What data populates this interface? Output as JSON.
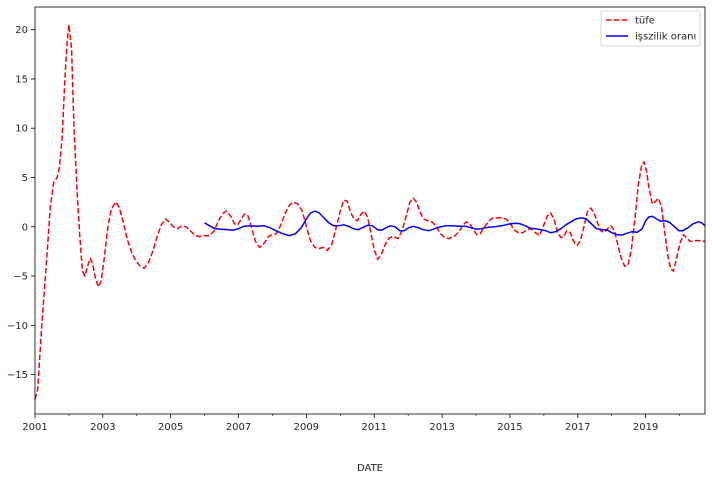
{
  "chart_data": {
    "type": "line",
    "title": "",
    "xlabel": "DATE",
    "ylabel": "",
    "xlim": [
      2001.0,
      2020.75
    ],
    "ylim": [
      -19.0,
      22.3
    ],
    "grid": false,
    "legend_position": "top-right",
    "x_tick_labels": [
      "2001",
      "2003",
      "2005",
      "2007",
      "2009",
      "2011",
      "2013",
      "2015",
      "2017",
      "2019"
    ],
    "x_major_ticks": [
      2001,
      2003,
      2005,
      2007,
      2009,
      2011,
      2013,
      2015,
      2017,
      2019
    ],
    "x_minor_ticks": [
      2002,
      2004,
      2006,
      2008,
      2010,
      2012,
      2014,
      2016,
      2018,
      2020
    ],
    "y_ticks": [
      -15,
      -10,
      -5,
      0,
      5,
      10,
      15,
      20
    ],
    "y_tick_labels": [
      "−15",
      "−10",
      "−5",
      "0",
      "5",
      "10",
      "15",
      "20"
    ],
    "series": [
      {
        "name": "tüfe",
        "color": "#ff0000",
        "style": "dashed",
        "points": [
          [
            2001.0,
            -17.5
          ],
          [
            2001.08,
            -16.5
          ],
          [
            2001.2,
            -10.0
          ],
          [
            2001.35,
            -3.0
          ],
          [
            2001.45,
            2.0
          ],
          [
            2001.55,
            4.5
          ],
          [
            2001.65,
            5.0
          ],
          [
            2001.72,
            6.0
          ],
          [
            2001.8,
            9.0
          ],
          [
            2001.88,
            15.0
          ],
          [
            2001.95,
            18.8
          ],
          [
            2002.0,
            20.5
          ],
          [
            2002.08,
            18.0
          ],
          [
            2002.15,
            10.0
          ],
          [
            2002.25,
            3.0
          ],
          [
            2002.32,
            -1.0
          ],
          [
            2002.4,
            -4.5
          ],
          [
            2002.47,
            -5.0
          ],
          [
            2002.55,
            -4.0
          ],
          [
            2002.63,
            -3.2
          ],
          [
            2002.7,
            -3.8
          ],
          [
            2002.78,
            -5.2
          ],
          [
            2002.87,
            -6.1
          ],
          [
            2002.95,
            -5.5
          ],
          [
            2003.05,
            -3.0
          ],
          [
            2003.15,
            0.0
          ],
          [
            2003.25,
            1.8
          ],
          [
            2003.38,
            2.5
          ],
          [
            2003.48,
            2.0
          ],
          [
            2003.6,
            0.5
          ],
          [
            2003.72,
            -1.3
          ],
          [
            2003.85,
            -2.6
          ],
          [
            2003.98,
            -3.5
          ],
          [
            2004.1,
            -4.0
          ],
          [
            2004.22,
            -4.2
          ],
          [
            2004.35,
            -3.6
          ],
          [
            2004.48,
            -2.4
          ],
          [
            2004.6,
            -1.0
          ],
          [
            2004.72,
            0.2
          ],
          [
            2004.85,
            0.8
          ],
          [
            2004.95,
            0.5
          ],
          [
            2005.08,
            0.0
          ],
          [
            2005.2,
            -0.2
          ],
          [
            2005.32,
            0.1
          ],
          [
            2005.45,
            0.0
          ],
          [
            2005.58,
            -0.4
          ],
          [
            2005.72,
            -0.9
          ],
          [
            2005.85,
            -1.0
          ],
          [
            2006.0,
            -0.9
          ],
          [
            2006.15,
            -0.9
          ],
          [
            2006.28,
            -0.4
          ],
          [
            2006.42,
            0.7
          ],
          [
            2006.55,
            1.4
          ],
          [
            2006.65,
            1.6
          ],
          [
            2006.78,
            1.0
          ],
          [
            2006.88,
            0.3
          ],
          [
            2006.98,
            0.2
          ],
          [
            2007.08,
            0.8
          ],
          [
            2007.18,
            1.3
          ],
          [
            2007.28,
            1.1
          ],
          [
            2007.38,
            0.0
          ],
          [
            2007.5,
            -1.5
          ],
          [
            2007.62,
            -2.1
          ],
          [
            2007.75,
            -1.7
          ],
          [
            2007.88,
            -1.0
          ],
          [
            2008.0,
            -0.8
          ],
          [
            2008.12,
            -0.7
          ],
          [
            2008.25,
            0.2
          ],
          [
            2008.38,
            1.4
          ],
          [
            2008.5,
            2.2
          ],
          [
            2008.62,
            2.5
          ],
          [
            2008.75,
            2.3
          ],
          [
            2008.88,
            1.6
          ],
          [
            2009.0,
            0.0
          ],
          [
            2009.12,
            -1.4
          ],
          [
            2009.25,
            -2.1
          ],
          [
            2009.38,
            -2.2
          ],
          [
            2009.5,
            -2.1
          ],
          [
            2009.62,
            -2.4
          ],
          [
            2009.75,
            -1.8
          ],
          [
            2009.87,
            -0.2
          ],
          [
            2010.0,
            1.6
          ],
          [
            2010.1,
            2.7
          ],
          [
            2010.2,
            2.6
          ],
          [
            2010.3,
            1.5
          ],
          [
            2010.4,
            0.8
          ],
          [
            2010.5,
            0.6
          ],
          [
            2010.6,
            1.2
          ],
          [
            2010.7,
            1.6
          ],
          [
            2010.8,
            1.0
          ],
          [
            2010.9,
            -0.6
          ],
          [
            2011.0,
            -2.3
          ],
          [
            2011.1,
            -3.3
          ],
          [
            2011.2,
            -2.9
          ],
          [
            2011.32,
            -1.8
          ],
          [
            2011.45,
            -1.1
          ],
          [
            2011.58,
            -1.0
          ],
          [
            2011.7,
            -1.2
          ],
          [
            2011.82,
            -0.4
          ],
          [
            2011.95,
            1.2
          ],
          [
            2012.05,
            2.5
          ],
          [
            2012.15,
            2.9
          ],
          [
            2012.25,
            2.5
          ],
          [
            2012.35,
            1.5
          ],
          [
            2012.45,
            0.8
          ],
          [
            2012.58,
            0.6
          ],
          [
            2012.7,
            0.5
          ],
          [
            2012.82,
            0.1
          ],
          [
            2012.95,
            -0.7
          ],
          [
            2013.08,
            -1.1
          ],
          [
            2013.2,
            -1.2
          ],
          [
            2013.35,
            -1.0
          ],
          [
            2013.5,
            -0.5
          ],
          [
            2013.62,
            0.2
          ],
          [
            2013.72,
            0.5
          ],
          [
            2013.82,
            0.3
          ],
          [
            2013.92,
            -0.3
          ],
          [
            2014.02,
            -0.8
          ],
          [
            2014.12,
            -0.7
          ],
          [
            2014.25,
            0.0
          ],
          [
            2014.38,
            0.6
          ],
          [
            2014.5,
            0.9
          ],
          [
            2014.62,
            0.9
          ],
          [
            2014.75,
            0.9
          ],
          [
            2014.88,
            0.8
          ],
          [
            2015.0,
            0.4
          ],
          [
            2015.12,
            -0.3
          ],
          [
            2015.25,
            -0.6
          ],
          [
            2015.38,
            -0.6
          ],
          [
            2015.5,
            -0.3
          ],
          [
            2015.62,
            -0.2
          ],
          [
            2015.75,
            -0.6
          ],
          [
            2015.88,
            -0.9
          ],
          [
            2016.0,
            0.2
          ],
          [
            2016.1,
            1.1
          ],
          [
            2016.2,
            1.4
          ],
          [
            2016.3,
            0.8
          ],
          [
            2016.4,
            -0.5
          ],
          [
            2016.5,
            -1.1
          ],
          [
            2016.58,
            -1.0
          ],
          [
            2016.68,
            -0.4
          ],
          [
            2016.78,
            -0.6
          ],
          [
            2016.88,
            -1.5
          ],
          [
            2016.98,
            -1.9
          ],
          [
            2017.08,
            -1.4
          ],
          [
            2017.18,
            0.0
          ],
          [
            2017.28,
            1.5
          ],
          [
            2017.38,
            1.9
          ],
          [
            2017.48,
            1.4
          ],
          [
            2017.58,
            0.4
          ],
          [
            2017.68,
            -0.4
          ],
          [
            2017.78,
            -0.6
          ],
          [
            2017.88,
            -0.2
          ],
          [
            2017.98,
            0.1
          ],
          [
            2018.08,
            -0.4
          ],
          [
            2018.18,
            -1.8
          ],
          [
            2018.28,
            -3.2
          ],
          [
            2018.38,
            -4.0
          ],
          [
            2018.48,
            -3.9
          ],
          [
            2018.58,
            -2.3
          ],
          [
            2018.68,
            0.7
          ],
          [
            2018.78,
            4.2
          ],
          [
            2018.88,
            6.2
          ],
          [
            2018.95,
            6.6
          ],
          [
            2019.02,
            5.8
          ],
          [
            2019.1,
            3.9
          ],
          [
            2019.2,
            2.3
          ],
          [
            2019.3,
            2.6
          ],
          [
            2019.38,
            2.9
          ],
          [
            2019.47,
            2.0
          ],
          [
            2019.56,
            -0.5
          ],
          [
            2019.66,
            -3.0
          ],
          [
            2019.74,
            -4.3
          ],
          [
            2019.82,
            -4.5
          ],
          [
            2019.92,
            -3.1
          ],
          [
            2020.02,
            -1.6
          ],
          [
            2020.12,
            -0.8
          ],
          [
            2020.22,
            -1.2
          ],
          [
            2020.32,
            -1.5
          ],
          [
            2020.45,
            -1.4
          ],
          [
            2020.58,
            -1.4
          ],
          [
            2020.75,
            -1.5
          ]
        ]
      },
      {
        "name": "işszilik oranı",
        "color": "#0000ff",
        "style": "solid",
        "points": [
          [
            2006.0,
            0.4
          ],
          [
            2006.15,
            0.1
          ],
          [
            2006.3,
            -0.2
          ],
          [
            2006.5,
            -0.25
          ],
          [
            2006.7,
            -0.3
          ],
          [
            2006.85,
            -0.35
          ],
          [
            2007.0,
            -0.2
          ],
          [
            2007.15,
            0.05
          ],
          [
            2007.35,
            0.1
          ],
          [
            2007.55,
            0.05
          ],
          [
            2007.75,
            0.1
          ],
          [
            2007.92,
            -0.1
          ],
          [
            2008.1,
            -0.4
          ],
          [
            2008.3,
            -0.7
          ],
          [
            2008.5,
            -0.9
          ],
          [
            2008.68,
            -0.7
          ],
          [
            2008.85,
            -0.1
          ],
          [
            2009.0,
            0.8
          ],
          [
            2009.12,
            1.4
          ],
          [
            2009.25,
            1.6
          ],
          [
            2009.38,
            1.4
          ],
          [
            2009.52,
            0.9
          ],
          [
            2009.66,
            0.4
          ],
          [
            2009.8,
            0.1
          ],
          [
            2009.95,
            0.1
          ],
          [
            2010.1,
            0.2
          ],
          [
            2010.25,
            0.05
          ],
          [
            2010.38,
            -0.2
          ],
          [
            2010.52,
            -0.3
          ],
          [
            2010.65,
            -0.1
          ],
          [
            2010.8,
            0.15
          ],
          [
            2010.95,
            0.1
          ],
          [
            2011.1,
            -0.3
          ],
          [
            2011.22,
            -0.35
          ],
          [
            2011.35,
            -0.1
          ],
          [
            2011.48,
            0.1
          ],
          [
            2011.62,
            0.0
          ],
          [
            2011.75,
            -0.4
          ],
          [
            2011.88,
            -0.4
          ],
          [
            2012.02,
            -0.1
          ],
          [
            2012.15,
            0.05
          ],
          [
            2012.3,
            -0.1
          ],
          [
            2012.45,
            -0.3
          ],
          [
            2012.6,
            -0.4
          ],
          [
            2012.75,
            -0.25
          ],
          [
            2012.9,
            -0.05
          ],
          [
            2013.1,
            0.1
          ],
          [
            2013.3,
            0.1
          ],
          [
            2013.5,
            0.05
          ],
          [
            2013.7,
            0.05
          ],
          [
            2013.85,
            -0.1
          ],
          [
            2014.0,
            -0.25
          ],
          [
            2014.15,
            -0.2
          ],
          [
            2014.35,
            -0.05
          ],
          [
            2014.55,
            0.0
          ],
          [
            2014.75,
            0.1
          ],
          [
            2014.95,
            0.25
          ],
          [
            2015.15,
            0.35
          ],
          [
            2015.3,
            0.3
          ],
          [
            2015.45,
            0.1
          ],
          [
            2015.6,
            -0.15
          ],
          [
            2015.75,
            -0.2
          ],
          [
            2015.9,
            -0.3
          ],
          [
            2016.05,
            -0.4
          ],
          [
            2016.2,
            -0.6
          ],
          [
            2016.35,
            -0.5
          ],
          [
            2016.5,
            -0.2
          ],
          [
            2016.65,
            0.2
          ],
          [
            2016.8,
            0.5
          ],
          [
            2016.95,
            0.8
          ],
          [
            2017.1,
            0.9
          ],
          [
            2017.25,
            0.8
          ],
          [
            2017.4,
            0.3
          ],
          [
            2017.55,
            -0.2
          ],
          [
            2017.7,
            -0.3
          ],
          [
            2017.85,
            -0.3
          ],
          [
            2018.0,
            -0.6
          ],
          [
            2018.15,
            -0.8
          ],
          [
            2018.3,
            -0.85
          ],
          [
            2018.45,
            -0.65
          ],
          [
            2018.6,
            -0.5
          ],
          [
            2018.75,
            -0.55
          ],
          [
            2018.9,
            -0.2
          ],
          [
            2019.0,
            0.6
          ],
          [
            2019.1,
            1.0
          ],
          [
            2019.2,
            1.05
          ],
          [
            2019.32,
            0.8
          ],
          [
            2019.45,
            0.55
          ],
          [
            2019.6,
            0.6
          ],
          [
            2019.72,
            0.4
          ],
          [
            2019.85,
            0.0
          ],
          [
            2019.98,
            -0.4
          ],
          [
            2020.1,
            -0.4
          ],
          [
            2020.25,
            -0.1
          ],
          [
            2020.4,
            0.3
          ],
          [
            2020.55,
            0.5
          ],
          [
            2020.65,
            0.4
          ],
          [
            2020.75,
            0.1
          ]
        ]
      }
    ]
  }
}
